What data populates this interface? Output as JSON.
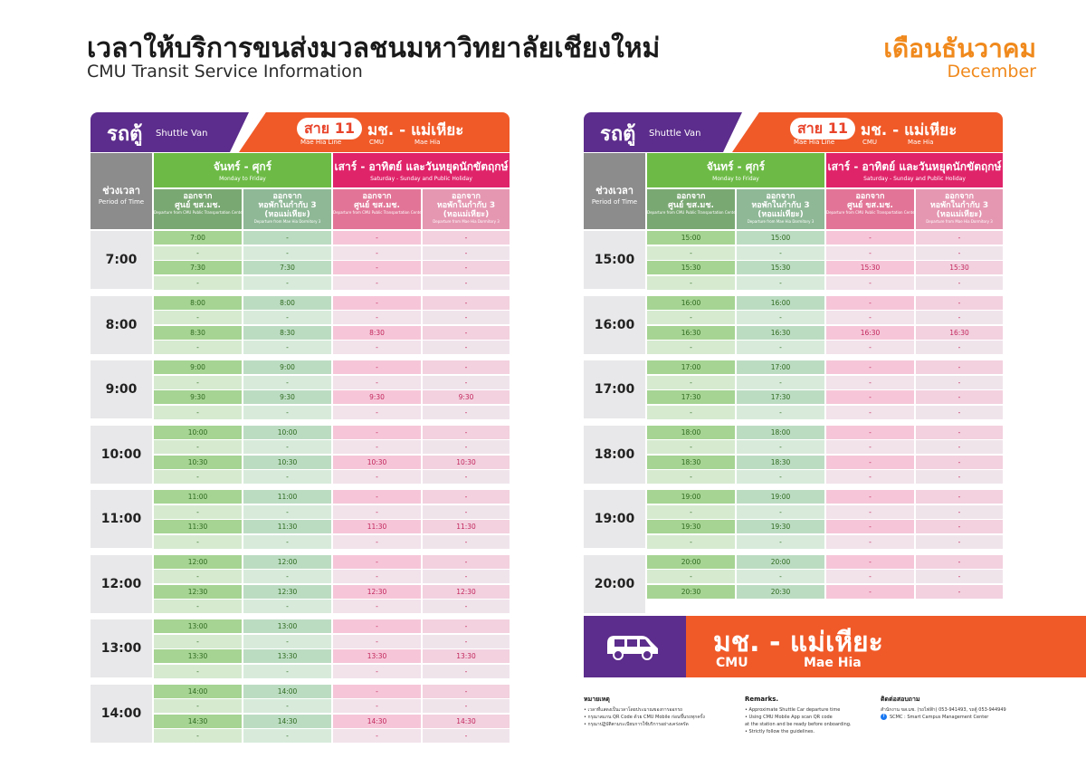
{
  "header": {
    "title_th": "เวลาให้บริการขนส่งมวลชนมหาวิทยาลัยเชียงใหม่",
    "title_en": "CMU Transit Service Information",
    "month_th": "เดือนธันวาคม",
    "month_en": "December"
  },
  "panel_header": {
    "vehicle_th": "รถตู้",
    "vehicle_en": "Shuttle Van",
    "line_th": "สาย 11",
    "line_en": "Mae Hia Line",
    "route_th": "มช. - แม่เหียะ",
    "route_cmu": "CMU",
    "route_mh": "Mae Hia"
  },
  "columns": {
    "period_th": "ช่วงเวลา",
    "period_en": "Period of Time",
    "weekday_th": "จันทร์ - ศุกร์",
    "weekday_en": "Monday to Friday",
    "weekend_th": "เสาร์ - อาทิตย์ และวันหยุดนักขัตฤกษ์",
    "weekend_en": "Saturday - Sunday and Public Holiday",
    "depart_center_th1": "ออกจาก",
    "depart_center_th2": "ศูนย์ ขส.มช.",
    "depart_center_en": "Departure from CMU Public Transportation Center",
    "depart_dorm_th1": "ออกจาก",
    "depart_dorm_th2": "หอพักในกำกับ 3",
    "depart_dorm_th3": "(หอแม่เหียะ)",
    "depart_dorm_en": "Departure from Mae Hia Dormitory 3"
  },
  "left_schedule": [
    {
      "hour": "7:00",
      "rows": [
        [
          "7:00",
          "-",
          "-",
          "-"
        ],
        [
          "-",
          "-",
          "-",
          "-"
        ],
        [
          "7:30",
          "7:30",
          "-",
          "-"
        ],
        [
          "-",
          "-",
          "-",
          "-"
        ]
      ]
    },
    {
      "hour": "8:00",
      "rows": [
        [
          "8:00",
          "8:00",
          "-",
          "-"
        ],
        [
          "-",
          "-",
          "-",
          "-"
        ],
        [
          "8:30",
          "8:30",
          "8:30",
          "-"
        ],
        [
          "-",
          "-",
          "-",
          "-"
        ]
      ]
    },
    {
      "hour": "9:00",
      "rows": [
        [
          "9:00",
          "9:00",
          "-",
          "-"
        ],
        [
          "-",
          "-",
          "-",
          "-"
        ],
        [
          "9:30",
          "9:30",
          "9:30",
          "9:30"
        ],
        [
          "-",
          "-",
          "-",
          "-"
        ]
      ]
    },
    {
      "hour": "10:00",
      "rows": [
        [
          "10:00",
          "10:00",
          "-",
          "-"
        ],
        [
          "-",
          "-",
          "-",
          "-"
        ],
        [
          "10:30",
          "10:30",
          "10:30",
          "10:30"
        ],
        [
          "-",
          "-",
          "-",
          "-"
        ]
      ]
    },
    {
      "hour": "11:00",
      "rows": [
        [
          "11:00",
          "11:00",
          "-",
          "-"
        ],
        [
          "-",
          "-",
          "-",
          "-"
        ],
        [
          "11:30",
          "11:30",
          "11:30",
          "11:30"
        ],
        [
          "-",
          "-",
          "-",
          "-"
        ]
      ]
    },
    {
      "hour": "12:00",
      "rows": [
        [
          "12:00",
          "12:00",
          "-",
          "-"
        ],
        [
          "-",
          "-",
          "-",
          "-"
        ],
        [
          "12:30",
          "12:30",
          "12:30",
          "12:30"
        ],
        [
          "-",
          "-",
          "-",
          "-"
        ]
      ]
    },
    {
      "hour": "13:00",
      "rows": [
        [
          "13:00",
          "13:00",
          "-",
          "-"
        ],
        [
          "-",
          "-",
          "-",
          "-"
        ],
        [
          "13:30",
          "13:30",
          "13:30",
          "13:30"
        ],
        [
          "-",
          "-",
          "-",
          "-"
        ]
      ]
    },
    {
      "hour": "14:00",
      "rows": [
        [
          "14:00",
          "14:00",
          "-",
          "-"
        ],
        [
          "-",
          "-",
          "-",
          "-"
        ],
        [
          "14:30",
          "14:30",
          "14:30",
          "14:30"
        ],
        [
          "-",
          "-",
          "-",
          "-"
        ]
      ]
    }
  ],
  "right_schedule": [
    {
      "hour": "15:00",
      "rows": [
        [
          "15:00",
          "15:00",
          "-",
          "-"
        ],
        [
          "-",
          "-",
          "-",
          "-"
        ],
        [
          "15:30",
          "15:30",
          "15:30",
          "15:30"
        ],
        [
          "-",
          "-",
          "-",
          "-"
        ]
      ]
    },
    {
      "hour": "16:00",
      "rows": [
        [
          "16:00",
          "16:00",
          "-",
          "-"
        ],
        [
          "-",
          "-",
          "-",
          "-"
        ],
        [
          "16:30",
          "16:30",
          "16:30",
          "16:30"
        ],
        [
          "-",
          "-",
          "-",
          "-"
        ]
      ]
    },
    {
      "hour": "17:00",
      "rows": [
        [
          "17:00",
          "17:00",
          "-",
          "-"
        ],
        [
          "-",
          "-",
          "-",
          "-"
        ],
        [
          "17:30",
          "17:30",
          "-",
          "-"
        ],
        [
          "-",
          "-",
          "-",
          "-"
        ]
      ]
    },
    {
      "hour": "18:00",
      "rows": [
        [
          "18:00",
          "18:00",
          "-",
          "-"
        ],
        [
          "-",
          "-",
          "-",
          "-"
        ],
        [
          "18:30",
          "18:30",
          "-",
          "-"
        ],
        [
          "-",
          "-",
          "-",
          "-"
        ]
      ]
    },
    {
      "hour": "19:00",
      "rows": [
        [
          "19:00",
          "19:00",
          "-",
          "-"
        ],
        [
          "-",
          "-",
          "-",
          "-"
        ],
        [
          "19:30",
          "19:30",
          "-",
          "-"
        ],
        [
          "-",
          "-",
          "-",
          "-"
        ]
      ]
    },
    {
      "hour": "20:00",
      "rows": [
        [
          "20:00",
          "20:00",
          "-",
          "-"
        ],
        [
          "-",
          "-",
          "-",
          "-"
        ],
        [
          "20:30",
          "20:30",
          "-",
          "-"
        ]
      ]
    }
  ],
  "route_banner": {
    "icon": "van-icon",
    "route_th": "มช. - แม่เหียะ",
    "cmu": "CMU",
    "mae_hia": "Mae Hia"
  },
  "notes": {
    "th_title": "หมายเหตุ",
    "th_items": [
      "• เวลาที่แสดงเป็นเวลาโดยประมาณของการออกรถ",
      "• กรุณาสแกน QR Code ด้วย CMU Mobile ก่อนขึ้นรถทุกครั้ง",
      "• กรุณาปฏิบัติตามระเบียบการใช้บริการอย่างเคร่งครัด"
    ],
    "en_title": "Remarks.",
    "en_items": [
      "• Approximate Shuttle Car departure time",
      "• Using CMU Mobile App scan QR code",
      "  at the station and be ready before onboarding.",
      "• Strictly follow the guidelines."
    ],
    "contact_title": "ติดต่อสอบถาม",
    "contact_line": "สำนักงาน ขส.มช. (รถไฟฟ้า) 053-941493, รถตู้ 053-944949",
    "contact_fb": "SCMC : Smart Campus Management Center"
  },
  "colors": {
    "purple": "#5c2d8c",
    "orange": "#f05a28",
    "green": "#6dbb46",
    "pink": "#e0246a",
    "month_orange": "#f0891c"
  }
}
